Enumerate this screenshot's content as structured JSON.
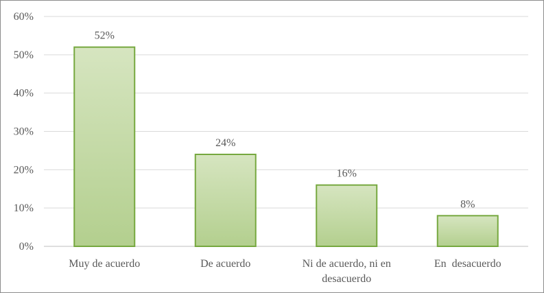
{
  "chart_data": {
    "type": "bar",
    "categories": [
      [
        "Muy de acuerdo"
      ],
      [
        "De acuerdo"
      ],
      [
        "Ni de acuerdo, ni en",
        "desacuerdo"
      ],
      [
        "En  desacuerdo"
      ]
    ],
    "values": [
      52,
      24,
      16,
      8
    ],
    "data_labels": [
      "52%",
      "24%",
      "16%",
      "8%"
    ],
    "ylim": [
      0,
      60
    ],
    "yticks": [
      0,
      10,
      20,
      30,
      40,
      50,
      60
    ],
    "ytick_labels": [
      "0%",
      "10%",
      "20%",
      "30%",
      "40%",
      "50%",
      "60%"
    ],
    "grid": true,
    "legend": "none",
    "title": "",
    "xlabel": "",
    "ylabel": "",
    "colors": {
      "bar_fill_top": "#d6e5c0",
      "bar_fill_bottom": "#b3cf8e",
      "bar_stroke": "#76a83f",
      "gridline": "#d9d9d9",
      "axis_line": "#bfbfbf",
      "text": "#595959",
      "frame_border": "#8c8c8c"
    }
  }
}
